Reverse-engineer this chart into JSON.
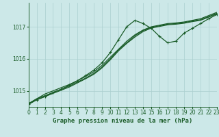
{
  "title": "Graphe pression niveau de la mer (hPa)",
  "bg_color": "#cce8e8",
  "grid_color": "#aacfcf",
  "line_color": "#1a5c28",
  "xlim": [
    0,
    23
  ],
  "ylim": [
    1014.5,
    1017.75
  ],
  "yticks": [
    1015,
    1016,
    1017
  ],
  "xticks": [
    0,
    1,
    2,
    3,
    4,
    5,
    6,
    7,
    8,
    9,
    10,
    11,
    12,
    13,
    14,
    15,
    16,
    17,
    18,
    19,
    20,
    21,
    22,
    23
  ],
  "series": [
    {
      "y": [
        1014.6,
        1014.75,
        1014.9,
        1015.0,
        1015.1,
        1015.2,
        1015.32,
        1015.45,
        1015.6,
        1015.8,
        1016.05,
        1016.3,
        1016.55,
        1016.75,
        1016.9,
        1017.0,
        1017.05,
        1017.1,
        1017.12,
        1017.15,
        1017.2,
        1017.25,
        1017.35,
        1017.45
      ],
      "marker": false,
      "lw": 0.9
    },
    {
      "y": [
        1014.6,
        1014.75,
        1014.85,
        1014.95,
        1015.05,
        1015.15,
        1015.28,
        1015.4,
        1015.55,
        1015.75,
        1016.0,
        1016.28,
        1016.5,
        1016.72,
        1016.88,
        1016.98,
        1017.03,
        1017.08,
        1017.1,
        1017.13,
        1017.18,
        1017.22,
        1017.32,
        1017.42
      ],
      "marker": false,
      "lw": 0.9
    },
    {
      "y": [
        1014.58,
        1014.72,
        1014.82,
        1014.92,
        1015.02,
        1015.12,
        1015.25,
        1015.38,
        1015.52,
        1015.72,
        1015.97,
        1016.25,
        1016.48,
        1016.68,
        1016.85,
        1016.96,
        1017.01,
        1017.06,
        1017.08,
        1017.11,
        1017.16,
        1017.2,
        1017.3,
        1017.4
      ],
      "marker": false,
      "lw": 0.9
    },
    {
      "y": [
        1014.58,
        1014.72,
        1014.82,
        1014.95,
        1015.05,
        1015.18,
        1015.32,
        1015.48,
        1015.65,
        1015.88,
        1016.2,
        1016.6,
        1017.0,
        1017.2,
        1017.1,
        1016.95,
        1016.7,
        1016.5,
        1016.55,
        1016.8,
        1016.95,
        1017.1,
        1017.25,
        1017.38
      ],
      "marker": true,
      "lw": 0.9
    }
  ],
  "marker": "+",
  "marker_size": 3.5,
  "marker_lw": 0.8,
  "tick_fontsize": 5.5,
  "label_fontsize": 6.5,
  "label_fontfamily": "monospace"
}
